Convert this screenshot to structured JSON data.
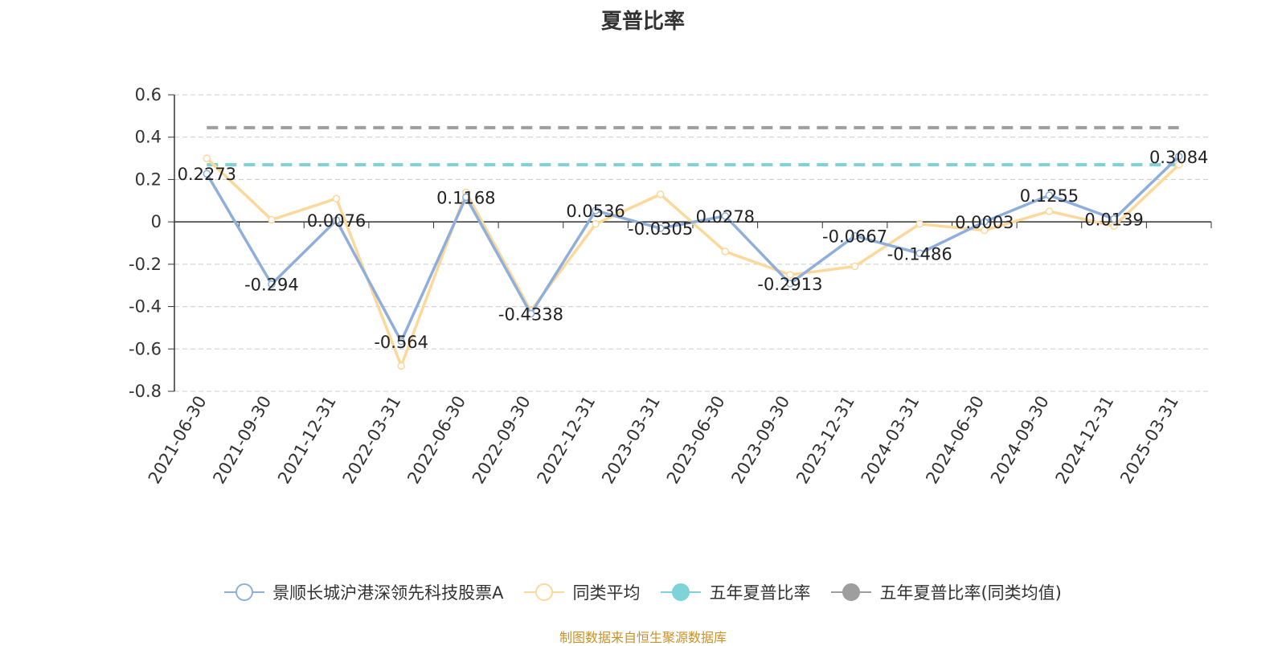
{
  "chart_data": {
    "type": "line",
    "title": "夏普比率",
    "categories": [
      "2021-06-30",
      "2021-09-30",
      "2021-12-31",
      "2022-03-31",
      "2022-06-30",
      "2022-09-30",
      "2022-12-31",
      "2023-03-31",
      "2023-06-30",
      "2023-09-30",
      "2023-12-31",
      "2024-03-31",
      "2024-06-30",
      "2024-09-30",
      "2024-12-31",
      "2025-03-31"
    ],
    "ylim": [
      -0.8,
      0.6
    ],
    "yticks": [
      0.6,
      0.4,
      0.2,
      0,
      -0.2,
      -0.4,
      -0.6,
      -0.8
    ],
    "grid": true,
    "legend_position": "bottom",
    "series": [
      {
        "name": "景顺长城沪港深领先科技股票A",
        "color": "#8eaedb",
        "values": [
          0.2273,
          -0.294,
          0.0076,
          -0.564,
          0.1168,
          -0.4338,
          0.0536,
          -0.0305,
          0.0278,
          -0.2913,
          -0.0667,
          -0.1486,
          0.0003,
          0.1255,
          0.0139,
          0.3084
        ],
        "labels": [
          "0.2273",
          "-0.294",
          "0.0076",
          "-0.564",
          "0.1168",
          "-0.4338",
          "0.0536",
          "-0.0305",
          "0.0278",
          "-0.2913",
          "-0.0667",
          "-0.1486",
          "0.0003",
          "0.1255",
          "0.0139",
          "0.3084"
        ]
      },
      {
        "name": "同类平均",
        "color": "#fcd89a",
        "values": [
          0.3,
          0.01,
          0.11,
          -0.68,
          0.14,
          -0.42,
          -0.01,
          0.13,
          -0.14,
          -0.25,
          -0.21,
          -0.01,
          -0.04,
          0.05,
          -0.02,
          0.27
        ]
      },
      {
        "name": "五年夏普比率",
        "color": "#7dd3d8",
        "constant": 0.27
      },
      {
        "name": "五年夏普比率(同类均值)",
        "color": "#9e9e9e",
        "constant": 0.445
      }
    ]
  },
  "footer_note": "制图数据来自恒生聚源数据库"
}
